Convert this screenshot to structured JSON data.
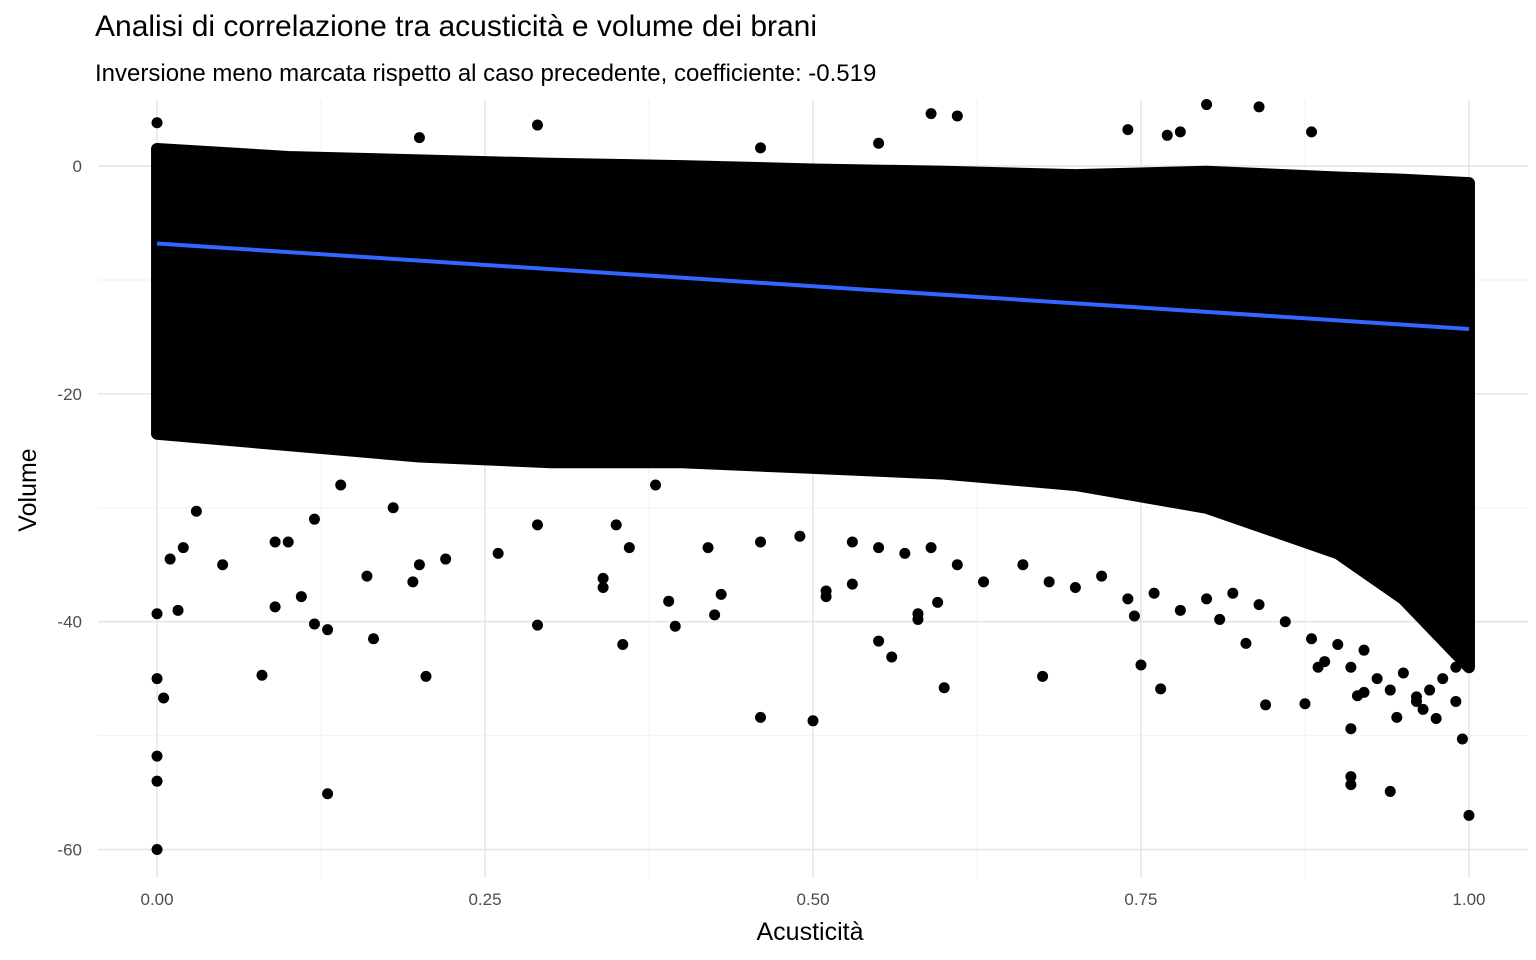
{
  "chart_data": {
    "type": "scatter",
    "title": "Analisi di correlazione tra acusticità e volume dei brani",
    "subtitle": "Inversione meno marcata rispetto al caso precedente, coefficiente:  -0.519",
    "xlabel": "Acusticità",
    "ylabel": "Volume",
    "xlim": [
      -0.045,
      1.045
    ],
    "ylim": [
      -62.5,
      5.8
    ],
    "x_ticks": [
      0,
      0.25,
      0.5,
      0.75,
      1
    ],
    "x_tick_labels": [
      "0.00",
      "0.25",
      "0.50",
      "0.75",
      "1.00"
    ],
    "y_ticks": [
      0,
      -20,
      -40,
      -60
    ],
    "y_tick_labels": [
      "0",
      "-20",
      "-40",
      "-60"
    ],
    "grid": true,
    "point_color": "#000000",
    "trend_line": {
      "color": "#3366FF",
      "x": [
        0,
        1
      ],
      "y": [
        -6.8,
        -14.3
      ]
    },
    "dense_band": {
      "x": [
        0,
        0.1,
        0.2,
        0.3,
        0.4,
        0.5,
        0.6,
        0.7,
        0.8,
        0.9,
        0.95,
        1
      ],
      "upper": [
        1.5,
        0.8,
        0.5,
        0.2,
        0,
        -0.3,
        -0.5,
        -0.8,
        -0.5,
        -1.0,
        -1.2,
        -1.5
      ],
      "lower": [
        -23.5,
        -24.5,
        -25.5,
        -26,
        -26,
        -26.5,
        -27,
        -28,
        -30,
        -34,
        -38,
        -44
      ]
    },
    "outliers": [
      [
        0,
        3.8
      ],
      [
        0.29,
        3.6
      ],
      [
        0.2,
        2.5
      ],
      [
        0.59,
        4.6
      ],
      [
        0.61,
        4.4
      ],
      [
        0.8,
        5.4
      ],
      [
        0.84,
        5.2
      ],
      [
        0.78,
        3.0
      ],
      [
        0.77,
        2.7
      ],
      [
        0.74,
        3.2
      ],
      [
        0.88,
        3.0
      ],
      [
        0.46,
        1.6
      ],
      [
        0.55,
        2.0
      ],
      [
        0.01,
        -34.5
      ],
      [
        0.02,
        -33.5
      ],
      [
        0.03,
        -30.3
      ],
      [
        0.05,
        -35
      ],
      [
        0.09,
        -33
      ],
      [
        0.1,
        -33
      ],
      [
        0.12,
        -31
      ],
      [
        0.14,
        -28
      ],
      [
        0.18,
        -30
      ],
      [
        0.2,
        -35
      ],
      [
        0.22,
        -34.5
      ],
      [
        0.26,
        -34
      ],
      [
        0.29,
        -31.5
      ],
      [
        0.35,
        -31.5
      ],
      [
        0.36,
        -33.5
      ],
      [
        0.34,
        -37
      ],
      [
        0.38,
        -28
      ],
      [
        0.42,
        -33.5
      ],
      [
        0.46,
        -33
      ],
      [
        0.49,
        -32.5
      ],
      [
        0.53,
        -33
      ],
      [
        0.55,
        -33.5
      ],
      [
        0.57,
        -34
      ],
      [
        0.59,
        -33.5
      ],
      [
        0.61,
        -35
      ],
      [
        0.63,
        -36.5
      ],
      [
        0.66,
        -35
      ],
      [
        0.68,
        -36.5
      ],
      [
        0.7,
        -37
      ],
      [
        0.72,
        -36
      ],
      [
        0.74,
        -38
      ],
      [
        0.76,
        -37.5
      ],
      [
        0.78,
        -39
      ],
      [
        0.8,
        -38
      ],
      [
        0.82,
        -37.5
      ],
      [
        0.84,
        -38.5
      ],
      [
        0.86,
        -40
      ],
      [
        0.88,
        -41.5
      ],
      [
        0.89,
        -43.5
      ],
      [
        0.9,
        -42
      ],
      [
        0.91,
        -44
      ],
      [
        0.92,
        -42.5
      ],
      [
        0.93,
        -45
      ],
      [
        0.94,
        -46
      ],
      [
        0.95,
        -44.5
      ],
      [
        0.96,
        -47
      ],
      [
        0.97,
        -46
      ],
      [
        0.98,
        -45
      ],
      [
        0.99,
        -44
      ],
      [
        0,
        -39.3
      ],
      [
        0,
        -45
      ],
      [
        0.005,
        -46.7
      ],
      [
        0,
        -51.8
      ],
      [
        0,
        -54
      ],
      [
        0,
        -60
      ],
      [
        0.016,
        -39
      ],
      [
        0.09,
        -38.7
      ],
      [
        0.11,
        -37.8
      ],
      [
        0.12,
        -40.2
      ],
      [
        0.13,
        -40.7
      ],
      [
        0.16,
        -36
      ],
      [
        0.165,
        -41.5
      ],
      [
        0.195,
        -36.5
      ],
      [
        0.08,
        -44.7
      ],
      [
        0.205,
        -44.8
      ],
      [
        0.13,
        -55.1
      ],
      [
        0.29,
        -40.3
      ],
      [
        0.34,
        -36.2
      ],
      [
        0.355,
        -42
      ],
      [
        0.39,
        -38.2
      ],
      [
        0.395,
        -40.4
      ],
      [
        0.43,
        -37.6
      ],
      [
        0.425,
        -39.4
      ],
      [
        0.46,
        -48.4
      ],
      [
        0.5,
        -48.7
      ],
      [
        0.51,
        -37.3
      ],
      [
        0.51,
        -37.8
      ],
      [
        0.53,
        -36.7
      ],
      [
        0.55,
        -41.7
      ],
      [
        0.56,
        -43.1
      ],
      [
        0.58,
        -39.3
      ],
      [
        0.58,
        -39.8
      ],
      [
        0.595,
        -38.3
      ],
      [
        0.6,
        -45.8
      ],
      [
        0.675,
        -44.8
      ],
      [
        0.745,
        -39.5
      ],
      [
        0.75,
        -43.8
      ],
      [
        0.765,
        -45.9
      ],
      [
        0.81,
        -39.8
      ],
      [
        0.83,
        -41.9
      ],
      [
        0.845,
        -47.3
      ],
      [
        0.875,
        -47.2
      ],
      [
        0.885,
        -44
      ],
      [
        0.91,
        -49.4
      ],
      [
        0.915,
        -46.5
      ],
      [
        0.92,
        -46.2
      ],
      [
        0.91,
        -53.6
      ],
      [
        0.91,
        -54.3
      ],
      [
        0.94,
        -54.9
      ],
      [
        0.945,
        -48.4
      ],
      [
        0.96,
        -46.6
      ],
      [
        0.965,
        -47.7
      ],
      [
        0.975,
        -48.5
      ],
      [
        0.99,
        -47
      ],
      [
        0.995,
        -50.3
      ],
      [
        1.0,
        -57
      ]
    ]
  }
}
